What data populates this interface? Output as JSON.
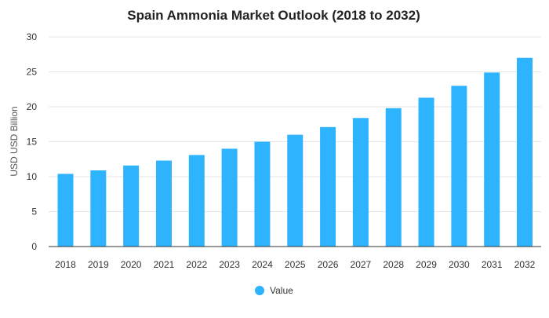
{
  "chart_data": {
    "type": "bar",
    "title": "Spain Ammonia Market Outlook (2018 to 2032)",
    "ylabel": "USD USD Billion",
    "xlabel": "",
    "categories": [
      "2018",
      "2019",
      "2020",
      "2021",
      "2022",
      "2023",
      "2024",
      "2025",
      "2026",
      "2027",
      "2028",
      "2029",
      "2030",
      "2031",
      "2032"
    ],
    "series": [
      {
        "name": "Value",
        "color": "#2eb4ff",
        "values": [
          10.4,
          10.9,
          11.6,
          12.3,
          13.1,
          14.0,
          15.0,
          16.0,
          17.1,
          18.4,
          19.8,
          21.3,
          23.0,
          24.9,
          27.0
        ]
      }
    ],
    "ylim": [
      0,
      30
    ],
    "yticks": [
      "0",
      "5",
      "10",
      "15",
      "20",
      "25",
      "30"
    ],
    "grid": true,
    "legend": "bottom"
  }
}
